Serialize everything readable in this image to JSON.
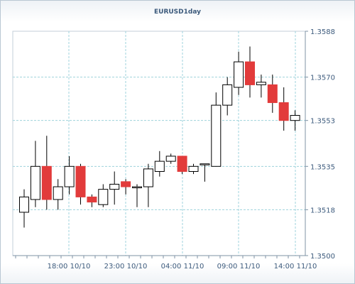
{
  "chart_data": {
    "type": "candlestick",
    "title": "EURUSD1day",
    "xlabel": "",
    "ylabel": "",
    "ylim": [
      1.35,
      1.3588
    ],
    "y_ticks": [
      "1.3588",
      "1.3570",
      "1.3553",
      "1.3535",
      "1.3518",
      "1.3500"
    ],
    "x_ticks": [
      "18:00 10/10",
      "23:00 10/10",
      "04:00 11/10",
      "09:00 11/10",
      "14:00 11/10"
    ],
    "grid": true,
    "up_color": "#ffffff",
    "down_color": "#e23b3b",
    "candles": [
      {
        "open": 1.3517,
        "high": 1.3526,
        "low": 1.3511,
        "close": 1.3523
      },
      {
        "open": 1.3522,
        "high": 1.3545,
        "low": 1.3519,
        "close": 1.3535
      },
      {
        "open": 1.3535,
        "high": 1.3547,
        "low": 1.3518,
        "close": 1.3522
      },
      {
        "open": 1.3522,
        "high": 1.353,
        "low": 1.3518,
        "close": 1.3527
      },
      {
        "open": 1.3527,
        "high": 1.3539,
        "low": 1.3524,
        "close": 1.3535
      },
      {
        "open": 1.3535,
        "high": 1.3536,
        "low": 1.352,
        "close": 1.3523
      },
      {
        "open": 1.3523,
        "high": 1.3524,
        "low": 1.3519,
        "close": 1.3521
      },
      {
        "open": 1.352,
        "high": 1.3528,
        "low": 1.3519,
        "close": 1.3526
      },
      {
        "open": 1.3526,
        "high": 1.3533,
        "low": 1.352,
        "close": 1.3528
      },
      {
        "open": 1.3529,
        "high": 1.353,
        "low": 1.3524,
        "close": 1.3527
      },
      {
        "open": 1.3527,
        "high": 1.3528,
        "low": 1.3519,
        "close": 1.3527
      },
      {
        "open": 1.3527,
        "high": 1.3536,
        "low": 1.3519,
        "close": 1.3534
      },
      {
        "open": 1.3533,
        "high": 1.3541,
        "low": 1.3531,
        "close": 1.3537
      },
      {
        "open": 1.3537,
        "high": 1.354,
        "low": 1.3536,
        "close": 1.3539
      },
      {
        "open": 1.3539,
        "high": 1.3539,
        "low": 1.3532,
        "close": 1.3533
      },
      {
        "open": 1.3533,
        "high": 1.3536,
        "low": 1.3532,
        "close": 1.3535
      },
      {
        "open": 1.3536,
        "high": 1.3536,
        "low": 1.3529,
        "close": 1.3536
      },
      {
        "open": 1.3535,
        "high": 1.3564,
        "low": 1.3535,
        "close": 1.3559
      },
      {
        "open": 1.3559,
        "high": 1.357,
        "low": 1.3555,
        "close": 1.3567
      },
      {
        "open": 1.3566,
        "high": 1.358,
        "low": 1.3563,
        "close": 1.3576
      },
      {
        "open": 1.3576,
        "high": 1.3582,
        "low": 1.3562,
        "close": 1.3567
      },
      {
        "open": 1.3567,
        "high": 1.3571,
        "low": 1.3562,
        "close": 1.3568
      },
      {
        "open": 1.3567,
        "high": 1.3571,
        "low": 1.3556,
        "close": 1.356
      },
      {
        "open": 1.356,
        "high": 1.3566,
        "low": 1.3549,
        "close": 1.3553
      },
      {
        "open": 1.3553,
        "high": 1.3557,
        "low": 1.3549,
        "close": 1.3555
      }
    ]
  }
}
